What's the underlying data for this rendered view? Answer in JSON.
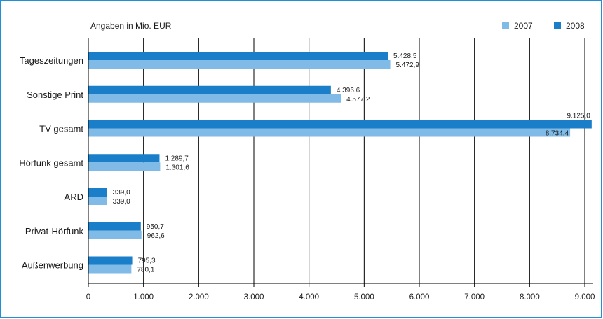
{
  "chart_data": {
    "type": "bar",
    "orientation": "horizontal",
    "unit_label": "Angaben in Mio. EUR",
    "categories": [
      "Tageszeitungen",
      "Sonstige Print",
      "TV gesamt",
      "Hörfunk gesamt",
      "ARD",
      "Privat-Hörfunk",
      "Außenwerbung"
    ],
    "series": [
      {
        "name": "2008",
        "color": "#1a7fc8",
        "values": [
          5428.5,
          4396.6,
          9125.0,
          1289.7,
          339.0,
          950.7,
          795.3
        ],
        "labels": [
          "5.428,5",
          "4.396,6",
          "9.125,0",
          "1.289,7",
          "339,0",
          "950,7",
          "795,3"
        ]
      },
      {
        "name": "2007",
        "color": "#7fbbe6",
        "values": [
          5472.9,
          4577.2,
          8734.4,
          1301.6,
          339.0,
          962.6,
          780.1
        ],
        "labels": [
          "5.472,9",
          "4.577,2",
          "8.734,4",
          "1.301,6",
          "339,0",
          "962,6",
          "780,1"
        ]
      }
    ],
    "legend_order": [
      "2007",
      "2008"
    ],
    "legend_position": "top-right",
    "xlim": [
      0,
      9000
    ],
    "xticks": [
      0,
      1000,
      2000,
      3000,
      4000,
      5000,
      6000,
      7000,
      8000,
      9000
    ],
    "xtick_labels": [
      "0",
      "1.000",
      "2.000",
      "3.000",
      "4.000",
      "5.000",
      "6.000",
      "7.000",
      "8.000",
      "9.000"
    ],
    "grid": "vertical",
    "axis_color": "#000000",
    "frame_color": "#1f8fd6"
  }
}
